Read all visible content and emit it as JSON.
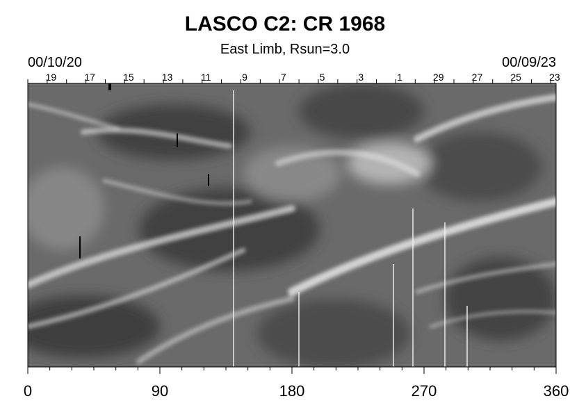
{
  "chart_data": {
    "type": "heatmap",
    "title": "LASCO C2: CR 1968",
    "subtitle": "East Limb, Rsun=3.0",
    "top_axis": {
      "start_date": "00/10/20",
      "end_date": "00/09/23",
      "day_labels": [
        "19",
        "17",
        "15",
        "13",
        "11",
        "9",
        "7",
        "5",
        "3",
        "1",
        "29",
        "27",
        "25",
        "23"
      ]
    },
    "x_ticks": [
      0,
      90,
      180,
      270,
      360
    ],
    "xlim": [
      0,
      360
    ],
    "colormap": "grayscale",
    "grid": false
  }
}
